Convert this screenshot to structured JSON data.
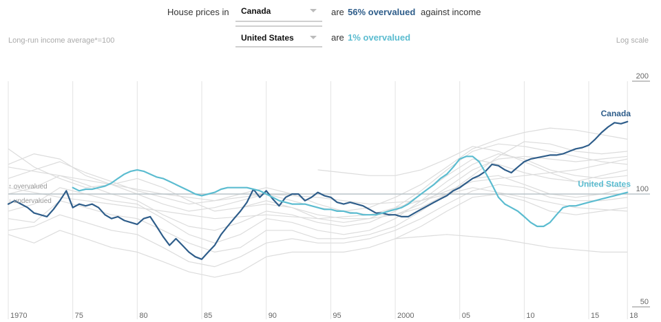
{
  "controls": {
    "lead": "House prices in",
    "country1": "Canada",
    "country2": "United States",
    "are": "are",
    "canada_pct": "56% overvalued",
    "against": "against income",
    "us_pct": "1% overvalued"
  },
  "notes": {
    "left": "Long-run income average*=100",
    "right": "Log scale"
  },
  "colors": {
    "canada": "#2e5d8a",
    "us": "#5bbcd0",
    "background_series": "#dcdcdc",
    "baseline": "#b9c3c8"
  },
  "chart_data": {
    "type": "line",
    "log_scale": true,
    "ylim": [
      50,
      200
    ],
    "y_ticks": [
      50,
      100,
      200
    ],
    "y_tick_labels": [
      "50",
      "100",
      "200"
    ],
    "x_range": [
      1970,
      2018.2
    ],
    "x_ticks": [
      1970,
      1975,
      1980,
      1985,
      1990,
      1995,
      2000,
      2005,
      2010,
      2015,
      2018
    ],
    "x_tick_labels": [
      "1970",
      "75",
      "80",
      "85",
      "90",
      "95",
      "2000",
      "05",
      "10",
      "15",
      "18"
    ],
    "baseline": {
      "value": 100,
      "above_label": "↑ overvalued",
      "below_label": "↓ undervalued"
    },
    "series": [
      {
        "name": "Canada",
        "role": "highlight",
        "x": [
          1970,
          1970.5,
          1971,
          1971.5,
          1972,
          1972.5,
          1973,
          1973.5,
          1974,
          1974.5,
          1975,
          1975.5,
          1976,
          1976.5,
          1977,
          1977.5,
          1978,
          1978.5,
          1979,
          1979.5,
          1980,
          1980.5,
          1981,
          1981.5,
          1982,
          1982.5,
          1983,
          1983.5,
          1984,
          1984.5,
          1985,
          1985.5,
          1986,
          1986.5,
          1987,
          1987.5,
          1988,
          1988.5,
          1989,
          1989.5,
          1990,
          1990.5,
          1991,
          1991.5,
          1992,
          1992.5,
          1993,
          1993.5,
          1994,
          1994.5,
          1995,
          1995.5,
          1996,
          1996.5,
          1997,
          1997.5,
          1998,
          1998.5,
          1999,
          1999.5,
          2000,
          2000.5,
          2001,
          2001.5,
          2002,
          2002.5,
          2003,
          2003.5,
          2004,
          2004.5,
          2005,
          2005.5,
          2006,
          2006.5,
          2007,
          2007.5,
          2008,
          2008.5,
          2009,
          2009.5,
          2010,
          2010.5,
          2011,
          2011.5,
          2012,
          2012.5,
          2013,
          2013.5,
          2014,
          2014.5,
          2015,
          2015.5,
          2016,
          2016.5,
          2017,
          2017.5,
          2018
        ],
        "values": [
          94,
          96,
          94,
          92,
          89,
          88,
          87,
          91,
          96,
          102,
          92,
          94,
          93,
          94,
          92,
          88,
          86,
          87,
          85,
          84,
          83,
          86,
          87,
          82,
          77,
          73,
          76,
          73,
          70,
          68,
          67,
          70,
          73,
          78,
          82,
          86,
          90,
          95,
          103,
          98,
          102,
          97,
          93,
          98,
          100,
          100,
          96,
          98,
          101,
          99,
          98,
          95,
          94,
          95,
          94,
          93,
          91,
          89,
          89,
          88,
          88,
          87,
          87,
          89,
          91,
          93,
          95,
          97,
          99,
          102,
          104,
          107,
          110,
          112,
          115,
          120,
          119,
          116,
          114,
          118,
          122,
          124,
          125,
          126,
          127,
          127,
          128,
          130,
          132,
          133,
          135,
          140,
          146,
          151,
          155,
          154,
          156
        ]
      },
      {
        "name": "United States",
        "role": "highlight",
        "x": [
          1975,
          1975.5,
          1976,
          1976.5,
          1977,
          1977.5,
          1978,
          1978.5,
          1979,
          1979.5,
          1980,
          1980.5,
          1981,
          1981.5,
          1982,
          1982.5,
          1983,
          1983.5,
          1984,
          1984.5,
          1985,
          1985.5,
          1986,
          1986.5,
          1987,
          1987.5,
          1988,
          1988.5,
          1989,
          1989.5,
          1990,
          1990.5,
          1991,
          1991.5,
          1992,
          1992.5,
          1993,
          1993.5,
          1994,
          1994.5,
          1995,
          1995.5,
          1996,
          1996.5,
          1997,
          1997.5,
          1998,
          1998.5,
          1999,
          1999.5,
          2000,
          2000.5,
          2001,
          2001.5,
          2002,
          2002.5,
          2003,
          2003.5,
          2004,
          2004.5,
          2005,
          2005.5,
          2006,
          2006.5,
          2007,
          2007.5,
          2008,
          2008.5,
          2009,
          2009.5,
          2010,
          2010.5,
          2011,
          2011.5,
          2012,
          2012.5,
          2013,
          2013.5,
          2014,
          2014.5,
          2015,
          2015.5,
          2016,
          2016.5,
          2017,
          2017.5,
          2018
        ],
        "values": [
          104,
          102,
          103,
          103,
          104,
          105,
          107,
          110,
          113,
          115,
          116,
          115,
          113,
          111,
          110,
          108,
          106,
          104,
          102,
          100,
          99,
          100,
          101,
          103,
          104,
          104,
          104,
          104,
          103,
          102,
          100,
          98,
          96,
          95,
          94,
          94,
          94,
          93,
          92,
          91,
          91,
          90,
          90,
          89,
          89,
          88,
          88,
          88,
          89,
          90,
          91,
          92,
          94,
          97,
          100,
          103,
          106,
          110,
          113,
          118,
          124,
          126,
          126,
          122,
          114,
          106,
          98,
          94,
          92,
          90,
          87,
          84,
          82,
          82,
          84,
          88,
          92,
          93,
          93,
          94,
          95,
          96,
          97,
          98,
          99,
          100,
          101
        ]
      },
      {
        "role": "background",
        "x": [
          1970,
          1972,
          1974,
          1976,
          1978,
          1980,
          1982,
          1984,
          1986,
          1988,
          1990,
          1992,
          1994,
          1996,
          1998,
          2000,
          2002,
          2004,
          2006,
          2008,
          2010,
          2012,
          2014,
          2016,
          2018
        ],
        "values": [
          120,
          128,
          124,
          112,
          106,
          100,
          94,
          90,
          92,
          96,
          100,
          96,
          92,
          90,
          92,
          98,
          106,
          118,
          132,
          140,
          146,
          150,
          148,
          144,
          140
        ]
      },
      {
        "role": "background",
        "x": [
          1970,
          1972,
          1974,
          1976,
          1978,
          1980,
          1982,
          1984,
          1986,
          1988,
          1990,
          1992,
          1994,
          1996,
          1998,
          2000,
          2002,
          2004,
          2006,
          2008,
          2010,
          2012,
          2014,
          2016,
          2018
        ],
        "values": [
          132,
          118,
          110,
          104,
          106,
          110,
          104,
          96,
          90,
          92,
          96,
          92,
          86,
          84,
          86,
          92,
          102,
          116,
          130,
          136,
          134,
          130,
          126,
          122,
          120
        ]
      },
      {
        "role": "background",
        "x": [
          1970,
          1972,
          1974,
          1976,
          1978,
          1980,
          1982,
          1984,
          1986,
          1988,
          1990,
          1992,
          1994,
          1996,
          1998,
          2000,
          2002,
          2004,
          2006,
          2008,
          2010,
          2012,
          2014,
          2016,
          2018
        ],
        "values": [
          110,
          116,
          122,
          114,
          108,
          102,
          98,
          94,
          96,
          100,
          104,
          100,
          94,
          90,
          88,
          88,
          92,
          100,
          112,
          126,
          138,
          136,
          130,
          128,
          130
        ]
      },
      {
        "role": "background",
        "x": [
          1970,
          1972,
          1974,
          1976,
          1978,
          1980,
          1982,
          1984,
          1986,
          1988,
          1990,
          1992,
          1994,
          1996,
          1998,
          2000,
          2002,
          2004,
          2006,
          2008,
          2010,
          2012,
          2014,
          2016,
          2018
        ],
        "values": [
          100,
          104,
          112,
          106,
          100,
          96,
          88,
          82,
          80,
          84,
          90,
          88,
          84,
          82,
          84,
          90,
          100,
          112,
          124,
          120,
          114,
          110,
          108,
          112,
          116
        ]
      },
      {
        "role": "background",
        "x": [
          1970,
          1972,
          1974,
          1976,
          1978,
          1980,
          1982,
          1984,
          1986,
          1988,
          1990,
          1992,
          1994,
          1996,
          1998,
          2000,
          2002,
          2004,
          2006,
          2008,
          2010,
          2012,
          2014,
          2016,
          2018
        ],
        "values": [
          90,
          94,
          104,
          100,
          96,
          94,
          86,
          78,
          74,
          78,
          86,
          84,
          80,
          78,
          80,
          86,
          96,
          108,
          120,
          128,
          124,
          116,
          112,
          110,
          112
        ]
      },
      {
        "role": "background",
        "x": [
          1970,
          1972,
          1974,
          1976,
          1978,
          1980,
          1982,
          1984,
          1986,
          1988,
          1990,
          1992,
          1994,
          1996,
          1998,
          2000,
          2002,
          2004,
          2006,
          2008,
          2010,
          2012,
          2014,
          2016,
          2018
        ],
        "values": [
          86,
          84,
          96,
          92,
          88,
          86,
          80,
          74,
          70,
          72,
          80,
          80,
          76,
          76,
          78,
          82,
          90,
          100,
          110,
          112,
          106,
          100,
          98,
          100,
          104
        ]
      },
      {
        "role": "background",
        "x": [
          1970,
          1972,
          1974,
          1976,
          1978,
          1980,
          1982,
          1984,
          1986,
          1988,
          1990,
          1992,
          1994,
          1996,
          1998,
          2000,
          2002,
          2004,
          2006,
          2008,
          2010,
          2012,
          2014,
          2016,
          2018
        ],
        "values": [
          80,
          82,
          88,
          84,
          80,
          78,
          72,
          66,
          64,
          68,
          74,
          76,
          74,
          74,
          76,
          80,
          86,
          94,
          102,
          106,
          104,
          98,
          96,
          96,
          98
        ]
      },
      {
        "role": "background",
        "x": [
          1970,
          1972,
          1974,
          1976,
          1978,
          1980,
          1982,
          1984,
          1986,
          1988,
          1990,
          1992,
          1994,
          1996,
          1998,
          2000,
          2002,
          2004,
          2006,
          2008,
          2010,
          2012,
          2014,
          2016,
          2018
        ],
        "values": [
          78,
          74,
          80,
          76,
          72,
          70,
          66,
          62,
          60,
          62,
          68,
          70,
          70,
          70,
          72,
          76,
          82,
          90,
          98,
          100,
          96,
          90,
          88,
          90,
          92
        ]
      },
      {
        "role": "background",
        "x": [
          1994,
          1996,
          1998,
          2000,
          2002,
          2004,
          2006,
          2008,
          2010,
          2012,
          2014,
          2016,
          2018
        ],
        "values": [
          116,
          114,
          112,
          112,
          116,
          124,
          134,
          130,
          122,
          114,
          108,
          106,
          104
        ]
      },
      {
        "role": "background",
        "x": [
          1988,
          1990,
          1992,
          1994,
          1996,
          1998,
          2000,
          2002,
          2004,
          2006,
          2008,
          2010,
          2012,
          2014,
          2016,
          2018
        ],
        "values": [
          92,
          94,
          92,
          88,
          86,
          86,
          88,
          94,
          104,
          116,
          124,
          126,
          124,
          122,
          124,
          126
        ]
      },
      {
        "role": "background",
        "x": [
          1970,
          1974,
          1978,
          1982,
          1986,
          1990,
          1994,
          1998,
          2002,
          2006,
          2010,
          2014,
          2018
        ],
        "values": [
          104,
          98,
          94,
          90,
          86,
          88,
          86,
          88,
          96,
          108,
          112,
          116,
          124
        ]
      },
      {
        "role": "background",
        "x": [
          1970,
          1974,
          1978,
          1982,
          1986,
          1990,
          1994,
          1998,
          2002,
          2006,
          2010,
          2014,
          2018
        ],
        "values": [
          118,
          112,
          106,
          100,
          96,
          100,
          98,
          94,
          96,
          104,
          98,
          92,
          90
        ]
      },
      {
        "role": "background",
        "x": [
          2000,
          2004,
          2008,
          2012,
          2016,
          2018
        ],
        "values": [
          76,
          78,
          76,
          72,
          70,
          70
        ]
      }
    ]
  }
}
